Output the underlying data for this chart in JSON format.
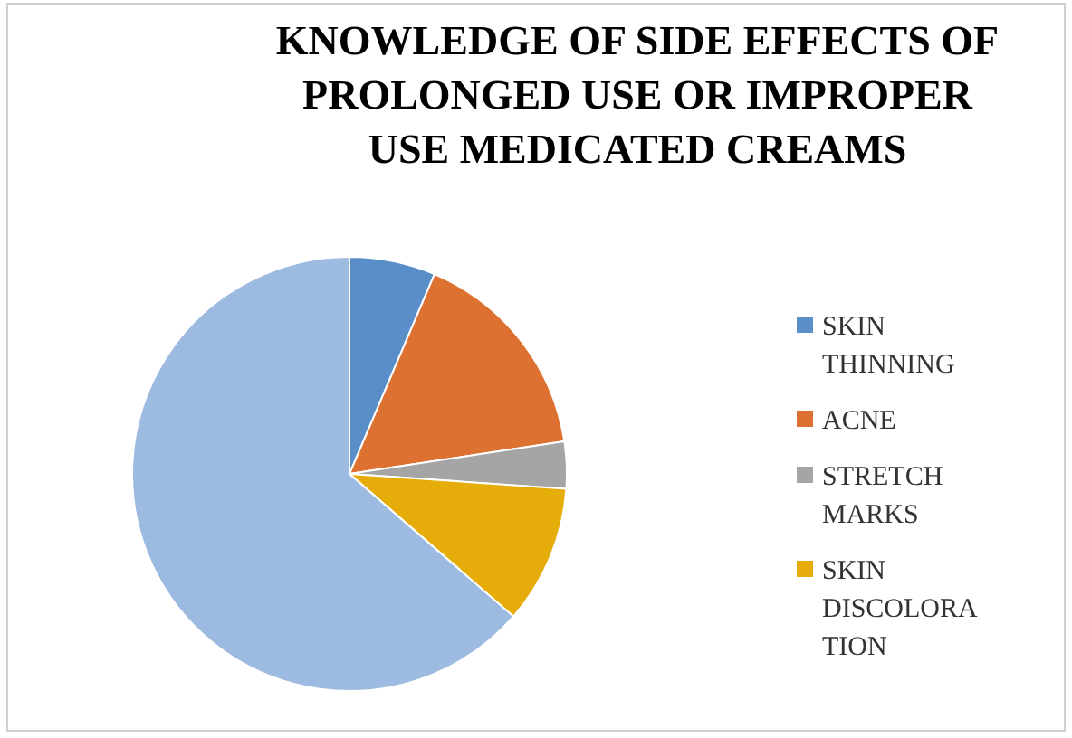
{
  "chart_data": {
    "type": "pie",
    "title": "KNOWLEDGE OF SIDE EFFECTS OF PROLONGED USE OR IMPROPER USE MEDICATED CREAMS",
    "categories": [
      "SKIN THINNING",
      "ACNE",
      "STRETCH MARKS",
      "SKIN DISCOLORATION",
      null
    ],
    "values": [
      6.4,
      16.2,
      3.5,
      10.3,
      63.6
    ],
    "colors": [
      "#5a8ec9",
      "#dc7131",
      "#a5a5a5",
      "#e6ac0a",
      "#9dbbe1"
    ],
    "legend": "right"
  }
}
